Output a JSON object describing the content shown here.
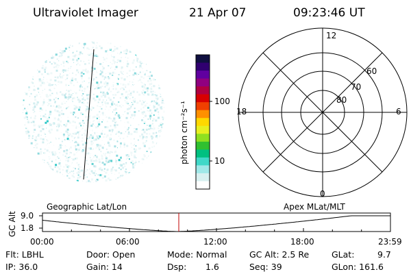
{
  "header": {
    "instrument": "Ultraviolet Imager",
    "date": "21 Apr 07",
    "time": "09:23:46 UT"
  },
  "colorbar": {
    "label": "photon cm⁻²s⁻¹",
    "scale": "log",
    "ticks": [
      10,
      100
    ],
    "colors": [
      "#ffffff",
      "#d8f0f0",
      "#a0e8e8",
      "#40d8c8",
      "#00c080",
      "#30c030",
      "#90e020",
      "#e8f020",
      "#ffd800",
      "#ff9000",
      "#f04000",
      "#d80000",
      "#b00040",
      "#900080",
      "#6000a0",
      "#300070",
      "#101040"
    ]
  },
  "polar_plot": {
    "mlt_labels": [
      "12",
      "6",
      "0",
      "18"
    ],
    "mlat_labels": [
      "80",
      "70",
      "60"
    ]
  },
  "altitude_plot": {
    "ylabel": "GC Alt",
    "yticks": [
      "9.0",
      "1.8"
    ],
    "left_label": "Geographic Lat/Lon",
    "right_label": "Apex MLat/MLT",
    "xticks": [
      "00:00",
      "06:00",
      "12:00",
      "18:00",
      "23:59"
    ],
    "current_time_hours": 9.4,
    "marker_color": "#c00000"
  },
  "status": {
    "filter": "Flt: LBHL",
    "ip": "IP: 36.0",
    "door": "Door: Open",
    "gain": "Gain: 14",
    "mode": "Mode: Normal",
    "dsp_label": "Dsp:",
    "dsp_value": "1.6",
    "gc_alt": "GC Alt: 2.5 Re",
    "seq": "Seq: 39",
    "glat_label": "GLat:",
    "glat_value": "9.7",
    "glon": "GLon: 161.6"
  }
}
